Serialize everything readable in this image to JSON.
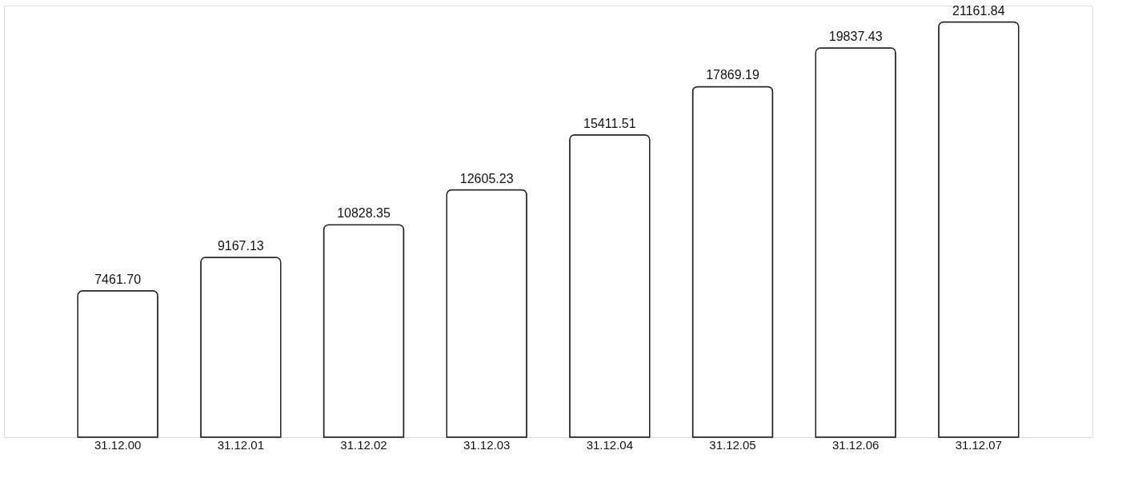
{
  "chart_data": {
    "type": "bar",
    "categories": [
      "31.12.00",
      "31.12.01",
      "31.12.02",
      "31.12.03",
      "31.12.04",
      "31.12.05",
      "31.12.06",
      "31.12.07"
    ],
    "values": [
      7461.7,
      9167.13,
      10828.35,
      12605.23,
      15411.51,
      17869.19,
      19837.43,
      21161.84
    ],
    "value_labels": [
      "7461.70",
      "9167.13",
      "10828.35",
      "12605.23",
      "15411.51",
      "17869.19",
      "19837.43",
      "21161.84"
    ],
    "color": "#ffffff",
    "grid": false
  }
}
